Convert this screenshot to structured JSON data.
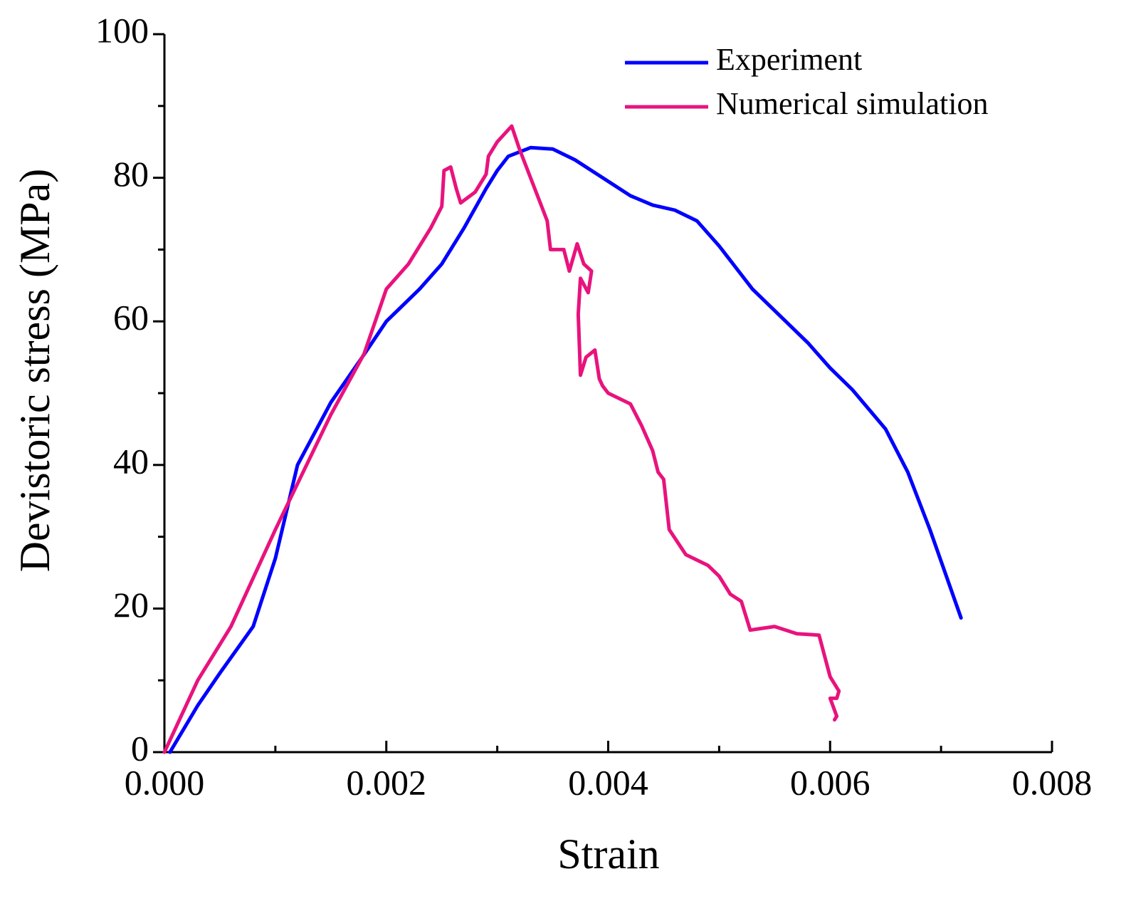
{
  "chart_data": {
    "type": "line",
    "xlabel": "Strain",
    "ylabel": "Devistoric stress (MPa)",
    "xlim": [
      0,
      0.008
    ],
    "ylim": [
      0,
      100
    ],
    "xticks": [
      {
        "value": 0,
        "label": "0.000"
      },
      {
        "value": 0.002,
        "label": "0.002"
      },
      {
        "value": 0.004,
        "label": "0.004"
      },
      {
        "value": 0.006,
        "label": "0.006"
      },
      {
        "value": 0.008,
        "label": "0.008"
      }
    ],
    "yticks": [
      0,
      20,
      40,
      60,
      80,
      100
    ],
    "xminorticks": [
      0.001,
      0.003,
      0.005,
      0.007
    ],
    "yminorticks": [
      10,
      30,
      50,
      70,
      90
    ],
    "legend": "upper right",
    "series": [
      {
        "name": "Experiment",
        "color": "#0000ff",
        "x": [
          5e-05,
          0.0003,
          0.0005,
          0.0008,
          0.001,
          0.0012,
          0.0015,
          0.0018,
          0.002,
          0.0023,
          0.0025,
          0.0027,
          0.0029,
          0.003,
          0.0031,
          0.0033,
          0.0035,
          0.0037,
          0.004,
          0.0042,
          0.0044,
          0.0046,
          0.0048,
          0.005,
          0.0053,
          0.0055,
          0.0058,
          0.006,
          0.0062,
          0.0065,
          0.0067,
          0.0069,
          0.00718
        ],
        "values": [
          0,
          6.5,
          11,
          17.5,
          27,
          40,
          48.7,
          55.4,
          60,
          64.5,
          68,
          73,
          78.5,
          81,
          83,
          84.2,
          84,
          82.5,
          79.5,
          77.5,
          76.2,
          75.5,
          74,
          70.5,
          64.5,
          61.5,
          57,
          53.5,
          50.5,
          45,
          39,
          31,
          18.7
        ]
      },
      {
        "name": "Numerical simulation",
        "color": "#e8137d",
        "x": [
          0,
          0.0003,
          0.0006,
          0.001,
          0.0015,
          0.0018,
          0.002,
          0.0022,
          0.0024,
          0.0025,
          0.00252,
          0.00258,
          0.00263,
          0.00267,
          0.0028,
          0.0029,
          0.00292,
          0.003,
          0.00313,
          0.0032,
          0.0033,
          0.00345,
          0.00348,
          0.0036,
          0.00365,
          0.00372,
          0.00378,
          0.00385,
          0.00382,
          0.00375,
          0.00373,
          0.00375,
          0.0038,
          0.00388,
          0.00392,
          0.00395,
          0.004,
          0.0042,
          0.0043,
          0.0044,
          0.00445,
          0.0045,
          0.00455,
          0.0047,
          0.0049,
          0.005,
          0.0051,
          0.0052,
          0.00528,
          0.0055,
          0.0057,
          0.0059,
          0.006,
          0.00608,
          0.00606,
          0.006,
          0.00606,
          0.00604
        ],
        "values": [
          0,
          10,
          17.5,
          31,
          47,
          55.5,
          64.5,
          68,
          73,
          76,
          81,
          81.5,
          78.5,
          76.5,
          78,
          80.5,
          83,
          85,
          87.2,
          84,
          80,
          74,
          70,
          70,
          67,
          70.8,
          68,
          67,
          64,
          66,
          61,
          52.5,
          55,
          56,
          52,
          51,
          50,
          48.5,
          45.5,
          42,
          39,
          38,
          31,
          27.5,
          26,
          24.5,
          22,
          21,
          17,
          17.5,
          16.5,
          16.3,
          10.5,
          8.5,
          7.5,
          7.5,
          5,
          4.5
        ]
      }
    ]
  }
}
